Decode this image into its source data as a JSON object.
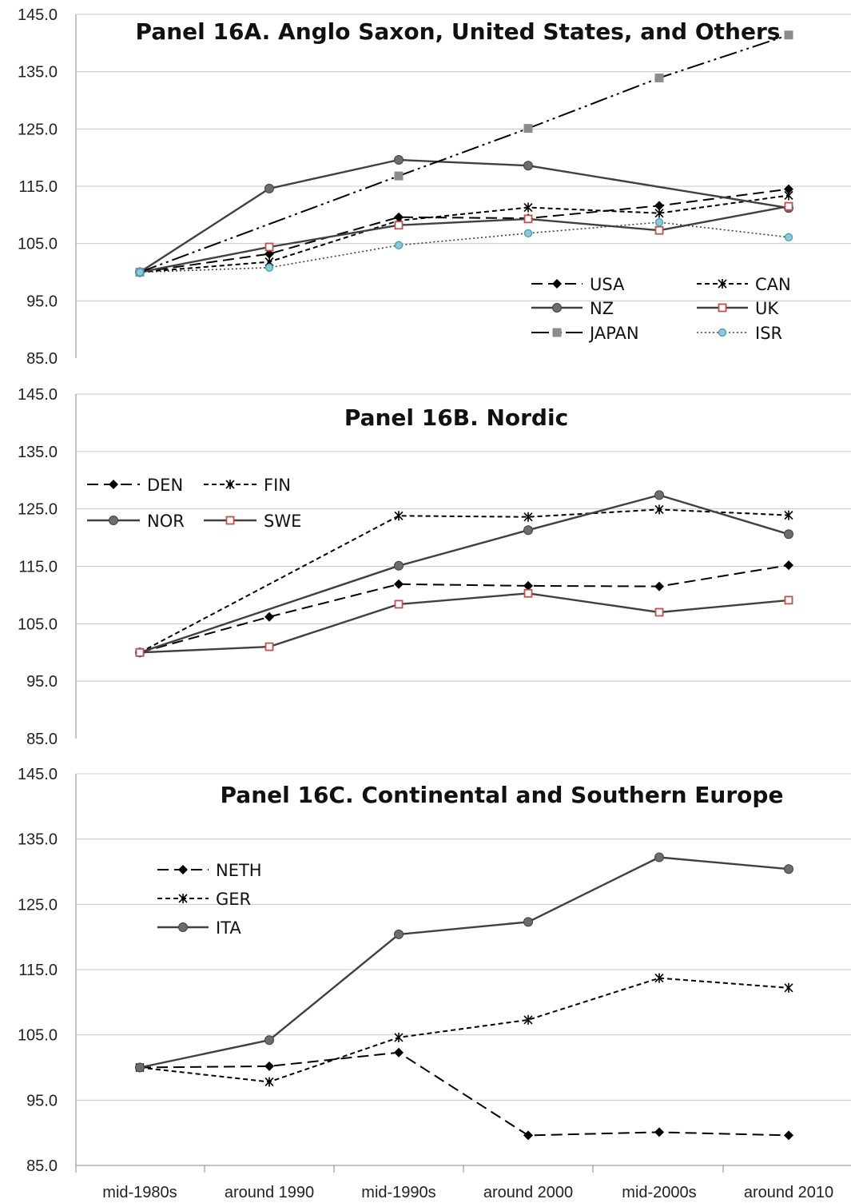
{
  "categories": [
    "mid-1980s",
    "around 1990",
    "mid-1990s",
    "around 2000",
    "mid-2000s",
    "around 2010"
  ],
  "colors": {
    "black": "#000000",
    "dark_gray": "#404040",
    "gray_marker": "#6d6d6d",
    "japan_marker": "#8c8c8c",
    "uk_marker_stroke": "#c0504d",
    "isr_marker_fill": "#8ecbd9",
    "isr_marker_stroke": "#4aa0b6",
    "grid": "#c8c8c8"
  },
  "chart_data": [
    {
      "type": "line",
      "title": "Panel 16A. Anglo Saxon, United States, and Others",
      "categories": [
        "mid-1980s",
        "around 1990",
        "mid-1990s",
        "around 2000",
        "mid-2000s",
        "around 2010"
      ],
      "ylim": [
        85,
        145
      ],
      "yticks": [
        "85.0",
        "95.0",
        "105.0",
        "115.0",
        "125.0",
        "135.0",
        "145.0"
      ],
      "grid": "horizontal",
      "legend": "bottom-right",
      "series": [
        {
          "name": "USA",
          "values": [
            100,
            103.2,
            109.6,
            109.4,
            111.6,
            114.5
          ],
          "line": "dashed",
          "marker": "diamond"
        },
        {
          "name": "CAN",
          "values": [
            100,
            101.8,
            109.0,
            111.3,
            110.3,
            113.4
          ],
          "line": "short-dashed",
          "marker": "star"
        },
        {
          "name": "NZ",
          "values": [
            100,
            114.6,
            119.6,
            118.6,
            null,
            111.2
          ],
          "line": "solid",
          "marker": "circle"
        },
        {
          "name": "UK",
          "values": [
            100,
            104.4,
            108.2,
            109.3,
            107.3,
            111.5
          ],
          "line": "solid",
          "marker": "square-open"
        },
        {
          "name": "JAPAN",
          "values": [
            100,
            null,
            116.8,
            125.1,
            133.9,
            141.4
          ],
          "line": "dash-dot-dot",
          "marker": "square"
        },
        {
          "name": "ISR",
          "values": [
            100,
            100.8,
            104.7,
            106.8,
            108.7,
            106.1
          ],
          "line": "dotted",
          "marker": "circle-light"
        }
      ]
    },
    {
      "type": "line",
      "title": "Panel 16B. Nordic",
      "categories": [
        "mid-1980s",
        "around 1990",
        "mid-1990s",
        "around 2000",
        "mid-2000s",
        "around 2010"
      ],
      "ylim": [
        85,
        145
      ],
      "yticks": [
        "85.0",
        "95.0",
        "105.0",
        "115.0",
        "125.0",
        "135.0",
        "145.0"
      ],
      "grid": "horizontal",
      "legend": "top-left",
      "series": [
        {
          "name": "DEN",
          "values": [
            100,
            106.2,
            111.9,
            111.6,
            111.5,
            115.2
          ],
          "line": "dashed",
          "marker": "diamond"
        },
        {
          "name": "FIN",
          "values": [
            100,
            null,
            123.8,
            123.6,
            124.9,
            123.9
          ],
          "line": "short-dashed",
          "marker": "star"
        },
        {
          "name": "NOR",
          "values": [
            100,
            null,
            115.1,
            121.3,
            127.4,
            120.6
          ],
          "line": "solid",
          "marker": "circle"
        },
        {
          "name": "SWE",
          "values": [
            100,
            101.0,
            108.4,
            110.3,
            107.0,
            109.1
          ],
          "line": "solid",
          "marker": "square-open"
        }
      ]
    },
    {
      "type": "line",
      "title": "Panel 16C. Continental and Southern Europe",
      "categories": [
        "mid-1980s",
        "around 1990",
        "mid-1990s",
        "around 2000",
        "mid-2000s",
        "around 2010"
      ],
      "ylim": [
        85,
        145
      ],
      "yticks": [
        "85.0",
        "95.0",
        "105.0",
        "115.0",
        "125.0",
        "135.0",
        "145.0"
      ],
      "grid": "horizontal",
      "legend": "top-left",
      "series": [
        {
          "name": "NETH",
          "values": [
            100,
            100.2,
            102.3,
            89.6,
            90.1,
            89.6
          ],
          "line": "dashed",
          "marker": "diamond"
        },
        {
          "name": "GER",
          "values": [
            100,
            97.8,
            104.6,
            107.3,
            113.7,
            112.2
          ],
          "line": "short-dashed",
          "marker": "star"
        },
        {
          "name": "ITA",
          "values": [
            100,
            104.2,
            120.4,
            122.3,
            132.2,
            130.4
          ],
          "line": "solid",
          "marker": "circle"
        }
      ]
    }
  ]
}
